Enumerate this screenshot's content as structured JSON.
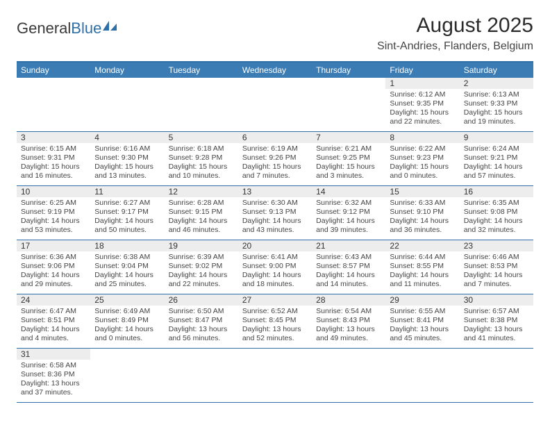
{
  "logo": {
    "part1": "General",
    "part2": "Blue"
  },
  "title": "August 2025",
  "location": "Sint-Andries, Flanders, Belgium",
  "colors": {
    "header_bg": "#3b7cb5",
    "accent": "#2f6fa8",
    "daynum_bg": "#ededed",
    "text": "#333333"
  },
  "day_headers": [
    "Sunday",
    "Monday",
    "Tuesday",
    "Wednesday",
    "Thursday",
    "Friday",
    "Saturday"
  ],
  "weeks": [
    [
      null,
      null,
      null,
      null,
      null,
      {
        "n": "1",
        "sr": "Sunrise: 6:12 AM",
        "ss": "Sunset: 9:35 PM",
        "dl": "Daylight: 15 hours and 22 minutes."
      },
      {
        "n": "2",
        "sr": "Sunrise: 6:13 AM",
        "ss": "Sunset: 9:33 PM",
        "dl": "Daylight: 15 hours and 19 minutes."
      }
    ],
    [
      {
        "n": "3",
        "sr": "Sunrise: 6:15 AM",
        "ss": "Sunset: 9:31 PM",
        "dl": "Daylight: 15 hours and 16 minutes."
      },
      {
        "n": "4",
        "sr": "Sunrise: 6:16 AM",
        "ss": "Sunset: 9:30 PM",
        "dl": "Daylight: 15 hours and 13 minutes."
      },
      {
        "n": "5",
        "sr": "Sunrise: 6:18 AM",
        "ss": "Sunset: 9:28 PM",
        "dl": "Daylight: 15 hours and 10 minutes."
      },
      {
        "n": "6",
        "sr": "Sunrise: 6:19 AM",
        "ss": "Sunset: 9:26 PM",
        "dl": "Daylight: 15 hours and 7 minutes."
      },
      {
        "n": "7",
        "sr": "Sunrise: 6:21 AM",
        "ss": "Sunset: 9:25 PM",
        "dl": "Daylight: 15 hours and 3 minutes."
      },
      {
        "n": "8",
        "sr": "Sunrise: 6:22 AM",
        "ss": "Sunset: 9:23 PM",
        "dl": "Daylight: 15 hours and 0 minutes."
      },
      {
        "n": "9",
        "sr": "Sunrise: 6:24 AM",
        "ss": "Sunset: 9:21 PM",
        "dl": "Daylight: 14 hours and 57 minutes."
      }
    ],
    [
      {
        "n": "10",
        "sr": "Sunrise: 6:25 AM",
        "ss": "Sunset: 9:19 PM",
        "dl": "Daylight: 14 hours and 53 minutes."
      },
      {
        "n": "11",
        "sr": "Sunrise: 6:27 AM",
        "ss": "Sunset: 9:17 PM",
        "dl": "Daylight: 14 hours and 50 minutes."
      },
      {
        "n": "12",
        "sr": "Sunrise: 6:28 AM",
        "ss": "Sunset: 9:15 PM",
        "dl": "Daylight: 14 hours and 46 minutes."
      },
      {
        "n": "13",
        "sr": "Sunrise: 6:30 AM",
        "ss": "Sunset: 9:13 PM",
        "dl": "Daylight: 14 hours and 43 minutes."
      },
      {
        "n": "14",
        "sr": "Sunrise: 6:32 AM",
        "ss": "Sunset: 9:12 PM",
        "dl": "Daylight: 14 hours and 39 minutes."
      },
      {
        "n": "15",
        "sr": "Sunrise: 6:33 AM",
        "ss": "Sunset: 9:10 PM",
        "dl": "Daylight: 14 hours and 36 minutes."
      },
      {
        "n": "16",
        "sr": "Sunrise: 6:35 AM",
        "ss": "Sunset: 9:08 PM",
        "dl": "Daylight: 14 hours and 32 minutes."
      }
    ],
    [
      {
        "n": "17",
        "sr": "Sunrise: 6:36 AM",
        "ss": "Sunset: 9:06 PM",
        "dl": "Daylight: 14 hours and 29 minutes."
      },
      {
        "n": "18",
        "sr": "Sunrise: 6:38 AM",
        "ss": "Sunset: 9:04 PM",
        "dl": "Daylight: 14 hours and 25 minutes."
      },
      {
        "n": "19",
        "sr": "Sunrise: 6:39 AM",
        "ss": "Sunset: 9:02 PM",
        "dl": "Daylight: 14 hours and 22 minutes."
      },
      {
        "n": "20",
        "sr": "Sunrise: 6:41 AM",
        "ss": "Sunset: 9:00 PM",
        "dl": "Daylight: 14 hours and 18 minutes."
      },
      {
        "n": "21",
        "sr": "Sunrise: 6:43 AM",
        "ss": "Sunset: 8:57 PM",
        "dl": "Daylight: 14 hours and 14 minutes."
      },
      {
        "n": "22",
        "sr": "Sunrise: 6:44 AM",
        "ss": "Sunset: 8:55 PM",
        "dl": "Daylight: 14 hours and 11 minutes."
      },
      {
        "n": "23",
        "sr": "Sunrise: 6:46 AM",
        "ss": "Sunset: 8:53 PM",
        "dl": "Daylight: 14 hours and 7 minutes."
      }
    ],
    [
      {
        "n": "24",
        "sr": "Sunrise: 6:47 AM",
        "ss": "Sunset: 8:51 PM",
        "dl": "Daylight: 14 hours and 4 minutes."
      },
      {
        "n": "25",
        "sr": "Sunrise: 6:49 AM",
        "ss": "Sunset: 8:49 PM",
        "dl": "Daylight: 14 hours and 0 minutes."
      },
      {
        "n": "26",
        "sr": "Sunrise: 6:50 AM",
        "ss": "Sunset: 8:47 PM",
        "dl": "Daylight: 13 hours and 56 minutes."
      },
      {
        "n": "27",
        "sr": "Sunrise: 6:52 AM",
        "ss": "Sunset: 8:45 PM",
        "dl": "Daylight: 13 hours and 52 minutes."
      },
      {
        "n": "28",
        "sr": "Sunrise: 6:54 AM",
        "ss": "Sunset: 8:43 PM",
        "dl": "Daylight: 13 hours and 49 minutes."
      },
      {
        "n": "29",
        "sr": "Sunrise: 6:55 AM",
        "ss": "Sunset: 8:41 PM",
        "dl": "Daylight: 13 hours and 45 minutes."
      },
      {
        "n": "30",
        "sr": "Sunrise: 6:57 AM",
        "ss": "Sunset: 8:38 PM",
        "dl": "Daylight: 13 hours and 41 minutes."
      }
    ],
    [
      {
        "n": "31",
        "sr": "Sunrise: 6:58 AM",
        "ss": "Sunset: 8:36 PM",
        "dl": "Daylight: 13 hours and 37 minutes."
      },
      null,
      null,
      null,
      null,
      null,
      null
    ]
  ]
}
